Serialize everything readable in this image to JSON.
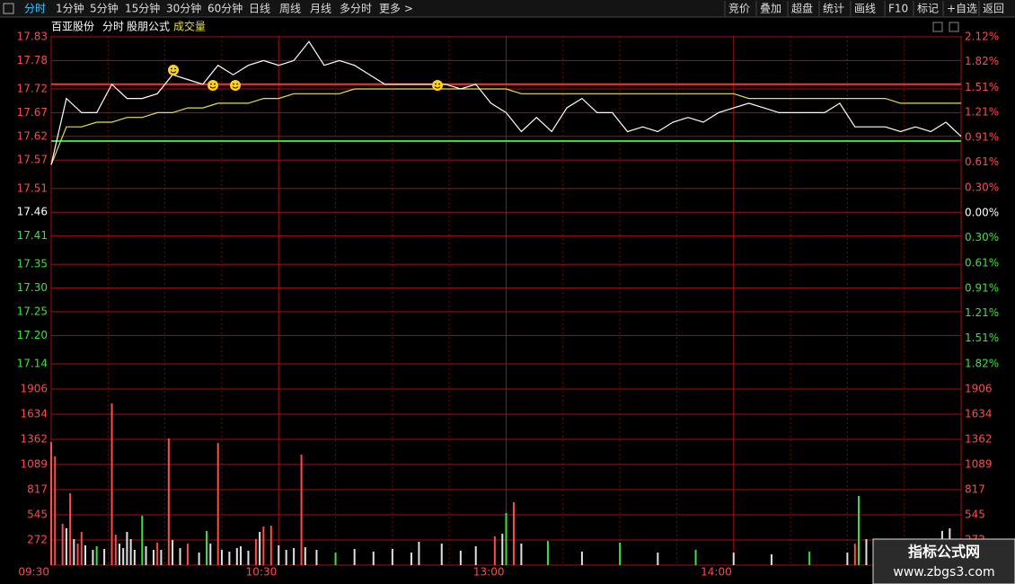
{
  "toolbar": {
    "left": [
      "分时",
      "1分钟",
      "5分钟",
      "15分钟",
      "30分钟",
      "60分钟",
      "日线",
      "周线",
      "月线",
      "多分时",
      "更多 >"
    ],
    "right": [
      "竞价",
      "叠加",
      "超盘",
      "统计",
      "画线",
      "F10",
      "标记",
      "+自选",
      "返回"
    ]
  },
  "chart_data": [
    {
      "type": "line",
      "title": "百亚股份",
      "subtitle": "分时",
      "annotation": "股朋公式",
      "x": [
        0,
        4,
        8,
        12,
        16,
        20,
        24,
        28,
        32,
        36,
        40,
        44,
        48,
        52,
        56,
        60,
        64,
        68,
        72,
        76,
        80,
        84,
        88,
        92,
        96,
        100,
        104,
        108,
        112,
        116,
        120,
        124,
        128,
        132,
        136,
        140,
        144,
        148,
        152,
        156,
        160,
        164,
        168,
        172,
        176,
        180,
        184,
        188,
        192,
        196,
        200,
        204,
        208,
        212,
        216,
        220,
        224,
        228,
        232,
        236,
        240
      ],
      "xlim": [
        0,
        240
      ],
      "xticks": [
        {
          "value": 0,
          "label": "09:30"
        },
        {
          "value": 60,
          "label": "10:30"
        },
        {
          "value": 120,
          "label": "13:00"
        },
        {
          "value": 180,
          "label": "14:00"
        }
      ],
      "xminorticks": [
        15,
        30,
        45,
        75,
        90,
        105,
        135,
        150,
        165,
        195,
        210,
        225
      ],
      "ylim": [
        17.14,
        17.83
      ],
      "yticks": [
        17.83,
        17.78,
        17.72,
        17.67,
        17.62,
        17.57,
        17.51,
        17.46,
        17.41,
        17.35,
        {
          "value": 17.3,
          "label": "17.30"
        },
        17.25,
        {
          "value": 17.2,
          "label": "17.20"
        },
        17.14
      ],
      "y2lim": [
        -1.82,
        2.12
      ],
      "y2ticks": [
        {
          "value": 2.12,
          "label": "2.12%"
        },
        {
          "value": 1.82,
          "label": "1.82%"
        },
        {
          "value": 1.51,
          "label": "1.51%"
        },
        {
          "value": 1.21,
          "label": "1.21%"
        },
        {
          "value": 0.91,
          "label": "0.91%"
        },
        {
          "value": 0.61,
          "label": "0.61%"
        },
        {
          "value": 0.3,
          "label": "0.30%"
        },
        {
          "value": 0,
          "label": "0.00%"
        },
        {
          "value": -0.3,
          "label": "0.30%"
        },
        {
          "value": -0.61,
          "label": "0.61%"
        },
        {
          "value": -0.91,
          "label": "0.91%"
        },
        {
          "value": -1.21,
          "label": "1.21%"
        },
        {
          "value": -1.51,
          "label": "1.51%"
        },
        {
          "value": -1.82,
          "label": "1.82%"
        }
      ],
      "reference": 17.46,
      "up_color": "#ff4a4a",
      "flat_color": "#ffffff",
      "down_color": "#3ee03e",
      "series": [
        {
          "color": "#ffffff",
          "values": [
            17.56,
            17.7,
            17.67,
            17.67,
            17.73,
            17.7,
            17.7,
            17.71,
            17.75,
            17.74,
            17.73,
            17.77,
            17.75,
            17.77,
            17.78,
            17.77,
            17.78,
            17.82,
            17.77,
            17.78,
            17.77,
            17.75,
            17.73,
            17.73,
            17.73,
            17.73,
            17.73,
            17.72,
            17.73,
            17.69,
            17.67,
            17.63,
            17.66,
            17.63,
            17.68,
            17.7,
            17.67,
            17.67,
            17.63,
            17.64,
            17.63,
            17.65,
            17.66,
            17.65,
            17.67,
            17.68,
            17.69,
            17.68,
            17.67,
            17.67,
            17.67,
            17.67,
            17.69,
            17.64,
            17.64,
            17.64,
            17.63,
            17.64,
            17.63,
            17.65,
            17.62
          ]
        },
        {
          "color": "#e6e04a",
          "values": [
            17.56,
            17.64,
            17.64,
            17.65,
            17.65,
            17.66,
            17.66,
            17.67,
            17.67,
            17.68,
            17.68,
            17.69,
            17.69,
            17.69,
            17.7,
            17.7,
            17.71,
            17.71,
            17.71,
            17.71,
            17.72,
            17.72,
            17.72,
            17.72,
            17.72,
            17.72,
            17.72,
            17.72,
            17.72,
            17.72,
            17.72,
            17.71,
            17.71,
            17.71,
            17.71,
            17.71,
            17.71,
            17.71,
            17.71,
            17.71,
            17.71,
            17.71,
            17.71,
            17.71,
            17.71,
            17.71,
            17.7,
            17.7,
            17.7,
            17.7,
            17.7,
            17.7,
            17.7,
            17.7,
            17.7,
            17.7,
            17.69,
            17.69,
            17.69,
            17.69,
            17.69
          ]
        }
      ],
      "levels": [
        {
          "value": 17.73,
          "color": "#ff3030"
        },
        {
          "value": 17.61,
          "color": "#30e030"
        }
      ]
    },
    {
      "type": "bar",
      "title": "成交量",
      "title_color": "#e6e04a",
      "label_color": "#ff4a4a",
      "x": [
        0,
        1,
        3,
        4,
        5,
        6,
        7,
        8,
        9,
        11,
        12,
        14,
        16,
        17,
        18,
        19,
        20,
        21,
        22,
        24,
        25,
        27,
        28,
        29,
        31,
        32,
        34,
        36,
        39,
        41,
        42,
        44,
        45,
        47,
        49,
        50,
        52,
        54,
        55,
        56,
        58,
        60,
        62,
        64,
        66,
        67,
        70,
        75,
        80,
        85,
        90,
        95,
        97,
        103,
        108,
        112,
        117,
        119,
        120,
        122,
        124,
        131,
        140,
        150,
        160,
        170,
        180,
        190,
        200,
        210,
        212,
        213,
        215,
        220,
        230,
        235,
        237
      ],
      "values": [
        1332,
        1176,
        447,
        400,
        778,
        282,
        233,
        360,
        214,
        165,
        204,
        175,
        1750,
        330,
        233,
        185,
        360,
        282,
        165,
        535,
        204,
        165,
        243,
        165,
        1371,
        272,
        185,
        233,
        136,
        370,
        233,
        1322,
        165,
        146,
        185,
        204,
        156,
        282,
        360,
        418,
        427,
        214,
        165,
        185,
        1196,
        194,
        165,
        136,
        175,
        146,
        175,
        136,
        253,
        233,
        156,
        204,
        311,
        340,
        564,
        681,
        233,
        262,
        146,
        243,
        136,
        165,
        136,
        117,
        146,
        136,
        233,
        749,
        282,
        146,
        136,
        370,
        398
      ],
      "colors": [
        "#ff4a4a",
        "#ff4a4a",
        "#ff4a4a",
        "#e0e0e0",
        "#ff4a4a",
        "#e0e0e0",
        "#ff4a4a",
        "#ff4a4a",
        "#e0e0e0",
        "#e0e0e0",
        "#3ee03e",
        "#e0e0e0",
        "#ff4a4a",
        "#ff4a4a",
        "#e0e0e0",
        "#e0e0e0",
        "#e0e0e0",
        "#e0e0e0",
        "#e0e0e0",
        "#3ee03e",
        "#e0e0e0",
        "#e0e0e0",
        "#ff4a4a",
        "#e0e0e0",
        "#ff4a4a",
        "#e0e0e0",
        "#e0e0e0",
        "#ff4a4a",
        "#e0e0e0",
        "#3ee03e",
        "#e0e0e0",
        "#ff4a4a",
        "#e0e0e0",
        "#e0e0e0",
        "#e0e0e0",
        "#e0e0e0",
        "#e0e0e0",
        "#ff4a4a",
        "#e0e0e0",
        "#ff4a4a",
        "#ff4a4a",
        "#e0e0e0",
        "#e0e0e0",
        "#e0e0e0",
        "#ff4a4a",
        "#e0e0e0",
        "#e0e0e0",
        "#3ee03e",
        "#e0e0e0",
        "#e0e0e0",
        "#e0e0e0",
        "#e0e0e0",
        "#e0e0e0",
        "#e0e0e0",
        "#e0e0e0",
        "#e0e0e0",
        "#ff4a4a",
        "#e0e0e0",
        "#3ee03e",
        "#ff4a4a",
        "#e0e0e0",
        "#3ee03e",
        "#e0e0e0",
        "#3ee03e",
        "#e0e0e0",
        "#3ee03e",
        "#e0e0e0",
        "#e0e0e0",
        "#3ee03e",
        "#e0e0e0",
        "#ff4a4a",
        "#3ee03e",
        "#e0e0e0",
        "#e0e0e0",
        "#e0e0e0",
        "#e0e0e0",
        "#e0e0e0"
      ],
      "xlim": [
        0,
        240
      ],
      "ylim": [
        0,
        1906
      ],
      "yticks": [
        1906,
        1634,
        1362,
        1089,
        817,
        545,
        272
      ]
    }
  ],
  "watermark": {
    "title": "指标公式网",
    "url": "www.zbgs3.com"
  }
}
